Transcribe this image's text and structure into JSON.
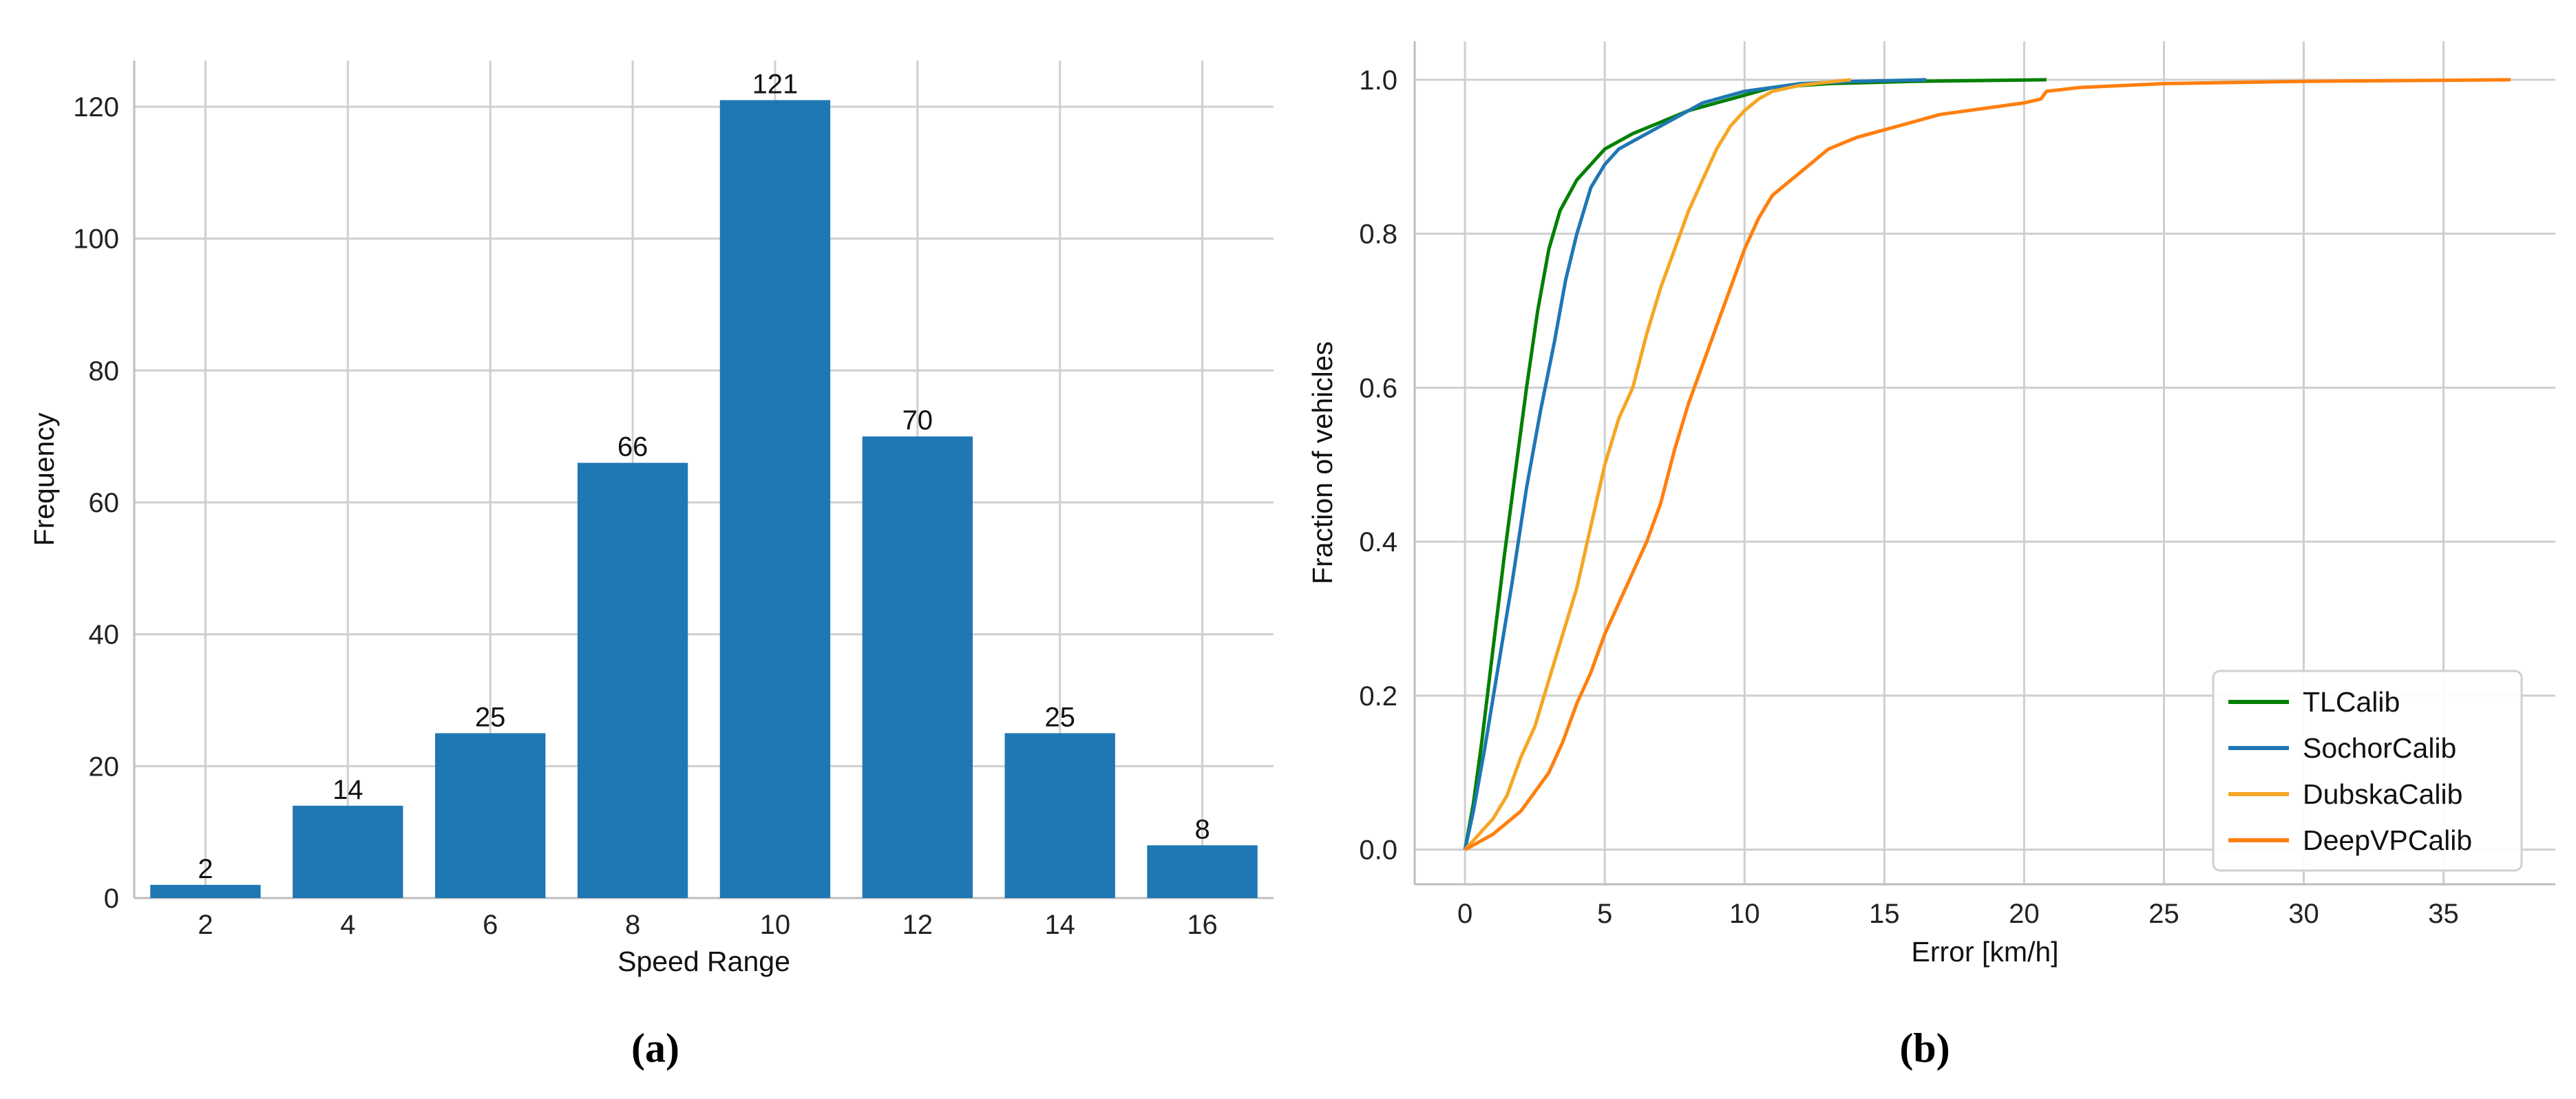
{
  "figure": {
    "panel_a_caption": "(a)",
    "panel_b_caption": "(b)"
  },
  "chart_data": [
    {
      "type": "bar",
      "categories": [
        "2",
        "4",
        "6",
        "8",
        "10",
        "12",
        "14",
        "16"
      ],
      "values": [
        2,
        14,
        25,
        66,
        121,
        70,
        25,
        8
      ],
      "data_labels": [
        "2",
        "14",
        "25",
        "66",
        "121",
        "70",
        "25",
        "8"
      ],
      "xlabel": "Speed Range",
      "ylabel": "Frequency",
      "ylim": [
        0,
        127
      ],
      "yticks": [
        0,
        20,
        40,
        60,
        80,
        100,
        120
      ],
      "grid": true,
      "bar_color": "#1f77b4"
    },
    {
      "type": "line",
      "xlabel": "Error [km/h]",
      "ylabel": "Fraction of vehicles",
      "xlim": [
        -1.8,
        39
      ],
      "ylim": [
        -0.045,
        1.05
      ],
      "xticks": [
        0,
        5,
        10,
        15,
        20,
        25,
        30,
        35
      ],
      "yticks": [
        "0.0",
        "0.2",
        "0.4",
        "0.6",
        "0.8",
        "1.0"
      ],
      "grid": true,
      "legend_position": "lower-right",
      "series": [
        {
          "name": "TLCalib",
          "color": "#008000",
          "points": [
            [
              0,
              0
            ],
            [
              0.3,
              0.06
            ],
            [
              0.6,
              0.14
            ],
            [
              1,
              0.26
            ],
            [
              1.4,
              0.38
            ],
            [
              1.8,
              0.49
            ],
            [
              2.2,
              0.6
            ],
            [
              2.6,
              0.7
            ],
            [
              3,
              0.78
            ],
            [
              3.4,
              0.83
            ],
            [
              4,
              0.87
            ],
            [
              4.5,
              0.89
            ],
            [
              5,
              0.91
            ],
            [
              6,
              0.93
            ],
            [
              7,
              0.945
            ],
            [
              8,
              0.96
            ],
            [
              9,
              0.97
            ],
            [
              10,
              0.98
            ],
            [
              11,
              0.99
            ],
            [
              13,
              0.995
            ],
            [
              16,
              0.998
            ],
            [
              20.8,
              1.0
            ]
          ]
        },
        {
          "name": "SochorCalib",
          "color": "#1f77b4",
          "points": [
            [
              0,
              0
            ],
            [
              0.3,
              0.05
            ],
            [
              0.7,
              0.13
            ],
            [
              1.2,
              0.24
            ],
            [
              1.7,
              0.35
            ],
            [
              2.2,
              0.47
            ],
            [
              2.7,
              0.57
            ],
            [
              3.2,
              0.66
            ],
            [
              3.6,
              0.74
            ],
            [
              4,
              0.8
            ],
            [
              4.5,
              0.86
            ],
            [
              5,
              0.89
            ],
            [
              5.5,
              0.91
            ],
            [
              6.5,
              0.93
            ],
            [
              7.5,
              0.95
            ],
            [
              8.5,
              0.97
            ],
            [
              10,
              0.985
            ],
            [
              12,
              0.995
            ],
            [
              14,
              0.998
            ],
            [
              16.5,
              1.0
            ]
          ]
        },
        {
          "name": "DubskaCalib",
          "color": "#f5a623",
          "points": [
            [
              0,
              0
            ],
            [
              0.5,
              0.02
            ],
            [
              1,
              0.04
            ],
            [
              1.5,
              0.07
            ],
            [
              2,
              0.12
            ],
            [
              2.5,
              0.16
            ],
            [
              3,
              0.22
            ],
            [
              3.5,
              0.28
            ],
            [
              4,
              0.34
            ],
            [
              4.5,
              0.42
            ],
            [
              5,
              0.5
            ],
            [
              5.5,
              0.56
            ],
            [
              6,
              0.6
            ],
            [
              6.5,
              0.67
            ],
            [
              7,
              0.73
            ],
            [
              7.5,
              0.78
            ],
            [
              8,
              0.83
            ],
            [
              8.5,
              0.87
            ],
            [
              9,
              0.91
            ],
            [
              9.5,
              0.94
            ],
            [
              10,
              0.96
            ],
            [
              10.5,
              0.975
            ],
            [
              11,
              0.985
            ],
            [
              12,
              0.993
            ],
            [
              13,
              0.997
            ],
            [
              13.8,
              1.0
            ]
          ]
        },
        {
          "name": "DeepVPCalib",
          "color": "#ff7f0e",
          "points": [
            [
              0,
              0
            ],
            [
              1,
              0.02
            ],
            [
              2,
              0.05
            ],
            [
              3,
              0.1
            ],
            [
              3.5,
              0.14
            ],
            [
              4,
              0.19
            ],
            [
              4.5,
              0.23
            ],
            [
              5,
              0.28
            ],
            [
              5.5,
              0.32
            ],
            [
              6,
              0.36
            ],
            [
              6.5,
              0.4
            ],
            [
              7,
              0.45
            ],
            [
              7.5,
              0.52
            ],
            [
              8,
              0.58
            ],
            [
              8.5,
              0.63
            ],
            [
              9,
              0.68
            ],
            [
              9.5,
              0.73
            ],
            [
              10,
              0.78
            ],
            [
              10.5,
              0.82
            ],
            [
              11,
              0.85
            ],
            [
              12,
              0.88
            ],
            [
              13,
              0.91
            ],
            [
              14,
              0.925
            ],
            [
              15,
              0.935
            ],
            [
              16,
              0.945
            ],
            [
              17,
              0.955
            ],
            [
              18,
              0.96
            ],
            [
              19,
              0.965
            ],
            [
              20,
              0.97
            ],
            [
              20.6,
              0.975
            ],
            [
              20.8,
              0.985
            ],
            [
              22,
              0.99
            ],
            [
              25,
              0.995
            ],
            [
              30,
              0.998
            ],
            [
              37.4,
              1.0
            ]
          ]
        }
      ]
    }
  ]
}
